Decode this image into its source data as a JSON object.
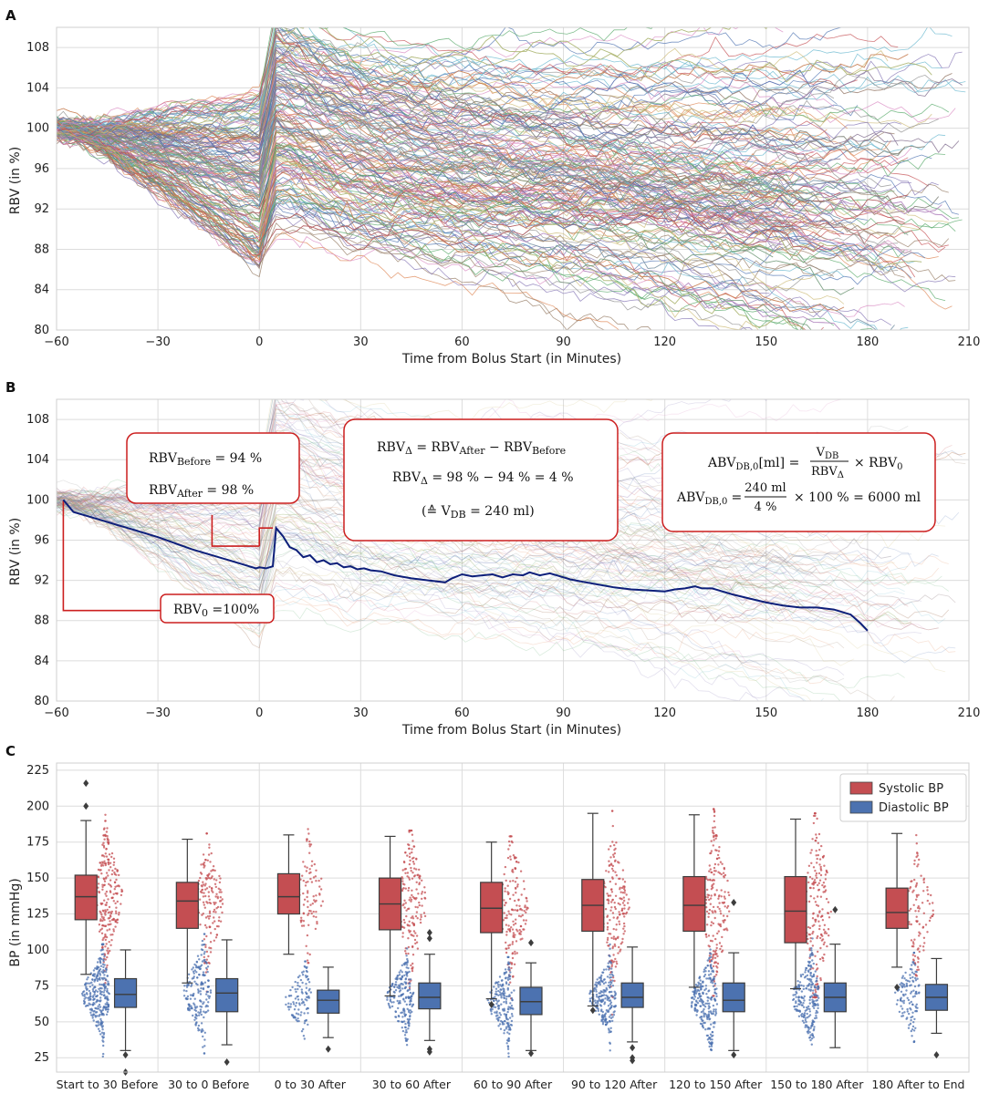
{
  "chart_data": [
    {
      "panel": "A",
      "type": "line",
      "title": "",
      "xlabel": "Time from Bolus Start (in Minutes)",
      "ylabel": "RBV (in %)",
      "xlim": [
        -60,
        210
      ],
      "ylim": [
        80,
        110
      ],
      "xticks": [
        -60,
        -30,
        0,
        30,
        60,
        90,
        120,
        150,
        180,
        210
      ],
      "yticks": [
        80,
        84,
        88,
        92,
        96,
        100,
        104,
        108
      ],
      "grid": true,
      "series_count": 220,
      "series_template": {
        "start": 100,
        "bolus_start_min": 0,
        "bolus_end_min": 5,
        "pre_bolus_drop_range": [
          -15,
          4
        ],
        "post_bolus_rise_range": [
          2,
          11
        ],
        "drift_per_min_range": [
          -0.1,
          0.035
        ],
        "end_range_min": [
          150,
          210
        ]
      },
      "palette": [
        "#4c72b0",
        "#dd8452",
        "#55a868",
        "#c44e52",
        "#8172b3",
        "#937860",
        "#da8bc3",
        "#8c8c8c",
        "#ccb974",
        "#64b5cd"
      ]
    },
    {
      "panel": "B",
      "type": "line",
      "title": "",
      "xlabel": "Time from Bolus Start (in Minutes)",
      "ylabel": "RBV (in %)",
      "xlim": [
        -60,
        210
      ],
      "ylim": [
        80,
        110
      ],
      "xticks": [
        -60,
        -30,
        0,
        30,
        60,
        90,
        120,
        150,
        180,
        210
      ],
      "yticks": [
        80,
        84,
        88,
        92,
        96,
        100,
        104,
        108
      ],
      "grid": true,
      "background_series_count": 120,
      "mean_series": {
        "name": "Mean RBV",
        "color": "#0d1f7a",
        "x": [
          -58,
          -55,
          -50,
          -45,
          -40,
          -35,
          -30,
          -25,
          -20,
          -15,
          -10,
          -5,
          -1,
          0,
          2,
          3,
          4,
          5,
          7,
          9,
          11,
          13,
          15,
          17,
          19,
          21,
          23,
          25,
          27,
          29,
          31,
          33,
          36,
          40,
          45,
          50,
          55,
          57,
          60,
          63,
          66,
          69,
          72,
          75,
          78,
          80,
          83,
          86,
          89,
          92,
          95,
          100,
          105,
          110,
          115,
          120,
          123,
          126,
          129,
          131,
          134,
          137,
          140,
          145,
          150,
          155,
          160,
          165,
          170,
          173,
          175,
          178,
          180
        ],
        "y": [
          100,
          98.8,
          98.3,
          97.8,
          97.3,
          96.8,
          96.3,
          95.7,
          95.1,
          94.6,
          94.1,
          93.6,
          93.2,
          93.3,
          93.2,
          93.3,
          93.4,
          97.2,
          96.4,
          95.3,
          95.0,
          94.3,
          94.5,
          93.8,
          94.0,
          93.6,
          93.7,
          93.3,
          93.4,
          93.1,
          93.2,
          93.0,
          92.9,
          92.5,
          92.2,
          92.0,
          91.8,
          92.2,
          92.6,
          92.4,
          92.5,
          92.6,
          92.3,
          92.6,
          92.5,
          92.8,
          92.5,
          92.7,
          92.4,
          92.1,
          91.9,
          91.6,
          91.3,
          91.1,
          91.0,
          90.9,
          91.1,
          91.2,
          91.4,
          91.2,
          91.2,
          90.9,
          90.6,
          90.2,
          89.8,
          89.5,
          89.3,
          89.3,
          89.1,
          88.8,
          88.6,
          87.7,
          87.0
        ]
      },
      "callout_lines": [
        {
          "name": "rbv-before-bracket",
          "x": [
            -14,
            -14,
            0
          ],
          "y": [
            98.5,
            95.4,
            95.4
          ]
        },
        {
          "name": "rbv-after-bracket",
          "x": [
            0,
            0,
            4
          ],
          "y": [
            95.4,
            97.2,
            97.2
          ]
        },
        {
          "name": "rbv0-bracket",
          "x": [
            -58,
            -58,
            -28
          ],
          "y": [
            100,
            89,
            89
          ]
        }
      ],
      "annotations": {
        "rbv_before": {
          "main": "RBV",
          "sub": "Before",
          "rest": " = 94 %"
        },
        "rbv_after": {
          "main": "RBV",
          "sub": "After",
          "rest": " = 98 %"
        },
        "delta_line1": {
          "a": "RBV",
          "a_sub": "Δ",
          "eq": "  = RBV",
          "b_sub": "After",
          "minus": " − RBV",
          "c_sub": "Before"
        },
        "delta_line2": {
          "a": "RBV",
          "a_sub": "Δ",
          "rest": " = 98 %  − 94 % = 4 %"
        },
        "delta_line3": {
          "prefix": "(≙ V",
          "sub": "DB",
          "rest": " = 240 ml)"
        },
        "abv_line1": {
          "a": "ABV",
          "a_sub": "DB,0",
          "mid": "[ml] =",
          "num": "V",
          "num_sub": "DB",
          "den": "RBV",
          "den_sub": "Δ",
          "rest": "× RBV",
          "rest_sub": "0"
        },
        "abv_line2": {
          "a": "ABV",
          "a_sub": "DB,0",
          "eq": "=",
          "num": "240 ml",
          "den": "4 %",
          "rest": "× 100 %  = 6000 ml"
        },
        "rbv0": {
          "main": "RBV",
          "sub": "0",
          "rest": " =100%"
        }
      },
      "annotation_color": "#cc1f1f"
    },
    {
      "panel": "C",
      "type": "box",
      "title": "",
      "xlabel": "",
      "ylabel": "BP (in mmHg)",
      "ylim": [
        15,
        230
      ],
      "yticks": [
        25,
        50,
        75,
        100,
        125,
        150,
        175,
        200,
        225
      ],
      "grid": true,
      "legend_position": "top-right",
      "categories": [
        "Start to 30 Before",
        "30 to 0 Before",
        "0 to 30 After",
        "30 to 60 After",
        "60 to 90 After",
        "90 to 120 After",
        "120 to 150 After",
        "150 to 180 After",
        "180 After to End"
      ],
      "series": [
        {
          "name": "Systolic BP",
          "color": "#c44e52",
          "q1": [
            121,
            115,
            125,
            114,
            112,
            113,
            113,
            105,
            115
          ],
          "median": [
            137,
            134,
            137,
            132,
            129,
            131,
            131,
            127,
            126
          ],
          "q3": [
            152,
            147,
            153,
            150,
            147,
            149,
            151,
            151,
            143
          ],
          "whisker_low": [
            83,
            77,
            97,
            68,
            66,
            61,
            74,
            73,
            88
          ],
          "whisker_high": [
            190,
            177,
            180,
            179,
            175,
            195,
            194,
            191,
            181
          ],
          "outliers": [
            [
              216,
              200
            ],
            [],
            [],
            [],
            [
              62
            ],
            [
              58
            ],
            [],
            [],
            [
              74
            ]
          ]
        },
        {
          "name": "Diastolic BP",
          "color": "#4c72b0",
          "q1": [
            60,
            57,
            56,
            59,
            55,
            60,
            57,
            57,
            58
          ],
          "median": [
            69,
            70,
            65,
            67,
            64,
            67,
            65,
            67,
            67
          ],
          "q3": [
            80,
            80,
            72,
            77,
            74,
            77,
            77,
            77,
            76
          ],
          "whisker_low": [
            30,
            34,
            39,
            37,
            30,
            36,
            30,
            32,
            42
          ],
          "whisker_high": [
            100,
            107,
            88,
            97,
            91,
            102,
            98,
            104,
            94
          ],
          "outliers": [
            [
              27,
              15
            ],
            [
              22
            ],
            [
              31
            ],
            [
              112,
              108,
              31,
              29
            ],
            [
              105,
              28
            ],
            [
              32,
              25,
              23
            ],
            [
              133,
              27
            ],
            [
              128
            ],
            [
              27
            ]
          ]
        }
      ],
      "swarm_points_per_group": [
        260,
        170,
        95,
        185,
        175,
        195,
        215,
        205,
        110
      ]
    }
  ],
  "panel_labels": [
    "A",
    "B",
    "C"
  ]
}
